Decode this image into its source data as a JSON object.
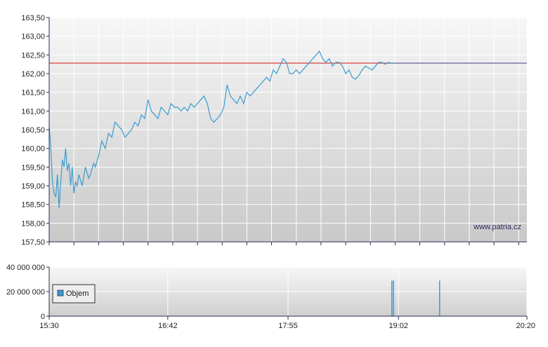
{
  "watermark": "www.patria.cz",
  "legend": {
    "label": "Objem"
  },
  "colors": {
    "price_line": "#3a9ccf",
    "reference_line_left": "#d9534f",
    "reference_line_right": "#6f6fa8",
    "volume_bars": "#3a9ccf",
    "axis": "#2a2a5a"
  },
  "chart_data": [
    {
      "type": "line",
      "title": "",
      "xlabel": "",
      "ylabel": "",
      "ylim": [
        157.5,
        163.5
      ],
      "xlim_minutes": [
        930,
        1220
      ],
      "yticks": [
        157.5,
        158.0,
        158.5,
        159.0,
        159.5,
        160.0,
        160.5,
        161.0,
        161.5,
        162.0,
        162.5,
        163.0,
        163.5
      ],
      "ytick_labels": [
        "157,50",
        "158,00",
        "158,50",
        "159,00",
        "159,50",
        "160,00",
        "160,50",
        "161,00",
        "161,50",
        "162,00",
        "162,50",
        "163,00",
        "163,50"
      ],
      "grid": true,
      "reference_line": {
        "value": 162.28,
        "from_time": "15:30",
        "to_time": "20:20"
      },
      "series": [
        {
          "x": [
            "15:30",
            "15:31",
            "15:32",
            "15:33",
            "15:34",
            "15:35",
            "15:36",
            "15:37",
            "15:38",
            "15:39",
            "15:40",
            "15:41",
            "15:42",
            "15:43",
            "15:44",
            "15:45",
            "15:46",
            "15:47",
            "15:48",
            "15:50",
            "15:52",
            "15:54",
            "15:55",
            "15:57",
            "15:58",
            "16:00",
            "16:02",
            "16:04",
            "16:06",
            "16:08",
            "16:10",
            "16:12",
            "16:14",
            "16:16",
            "16:18",
            "16:20",
            "16:22",
            "16:24",
            "16:26",
            "16:28",
            "16:30",
            "16:32",
            "16:34",
            "16:36",
            "16:38",
            "16:40",
            "16:42",
            "16:44",
            "16:46",
            "16:48",
            "16:50",
            "16:52",
            "16:54",
            "16:56",
            "16:58",
            "17:00",
            "17:02",
            "17:04",
            "17:06",
            "17:08",
            "17:10",
            "17:12",
            "17:14",
            "17:16",
            "17:18",
            "17:20",
            "17:22",
            "17:24",
            "17:26",
            "17:28",
            "17:30",
            "17:32",
            "17:34",
            "17:36",
            "17:38",
            "17:40",
            "17:42",
            "17:44",
            "17:46",
            "17:48",
            "17:50",
            "17:52",
            "17:54",
            "17:56",
            "17:58",
            "18:00",
            "18:02",
            "18:04",
            "18:06",
            "18:08",
            "18:10",
            "18:12",
            "18:14",
            "18:16",
            "18:18",
            "18:20",
            "18:22",
            "18:24",
            "18:26",
            "18:28",
            "18:30",
            "18:32",
            "18:34",
            "18:36",
            "18:38",
            "18:40",
            "18:42",
            "18:44",
            "18:46",
            "18:48",
            "18:50",
            "18:52",
            "18:54",
            "18:56",
            "18:58",
            "19:00"
          ],
          "values": [
            160.6,
            160.0,
            159.1,
            158.8,
            158.7,
            159.3,
            158.4,
            159.1,
            159.7,
            159.5,
            160.0,
            159.4,
            159.6,
            159.0,
            159.5,
            158.8,
            159.1,
            159.0,
            159.3,
            159.0,
            159.5,
            159.2,
            159.3,
            159.6,
            159.5,
            159.8,
            160.2,
            160.0,
            160.4,
            160.3,
            160.7,
            160.6,
            160.5,
            160.3,
            160.4,
            160.5,
            160.7,
            160.6,
            160.9,
            160.8,
            161.3,
            161.0,
            160.9,
            160.8,
            161.1,
            161.0,
            160.9,
            161.2,
            161.1,
            161.1,
            161.0,
            161.1,
            161.0,
            161.2,
            161.1,
            161.2,
            161.3,
            161.4,
            161.2,
            160.8,
            160.7,
            160.8,
            160.9,
            161.1,
            161.7,
            161.4,
            161.3,
            161.2,
            161.4,
            161.2,
            161.5,
            161.4,
            161.5,
            161.6,
            161.7,
            161.8,
            161.9,
            161.8,
            162.1,
            162.0,
            162.2,
            162.4,
            162.3,
            162.0,
            162.0,
            162.1,
            162.0,
            162.1,
            162.2,
            162.3,
            162.4,
            162.5,
            162.6,
            162.4,
            162.3,
            162.4,
            162.2,
            162.3,
            162.3,
            162.2,
            162.0,
            162.1,
            161.9,
            161.85,
            161.95,
            162.1,
            162.2,
            162.15,
            162.1,
            162.2,
            162.3,
            162.3,
            162.25,
            162.3,
            162.28,
            162.28
          ],
          "color": "#3a9ccf"
        }
      ]
    },
    {
      "type": "bar",
      "title": "",
      "xlabel": "",
      "ylabel": "",
      "ylim": [
        0,
        40000000
      ],
      "yticks": [
        0,
        20000000,
        40000000
      ],
      "ytick_labels": [
        "0",
        "20 000 000",
        "40 000 000"
      ],
      "xticks": [
        "15:30",
        "16:42",
        "17:55",
        "19:02",
        "20:20"
      ],
      "legend_placement": "left",
      "grid": true,
      "series": [
        {
          "name": "Objem",
          "x": [
            "18:58",
            "18:59",
            "19:27"
          ],
          "values": [
            29000000,
            29000000,
            29000000
          ],
          "color": "#3a9ccf"
        }
      ]
    }
  ]
}
